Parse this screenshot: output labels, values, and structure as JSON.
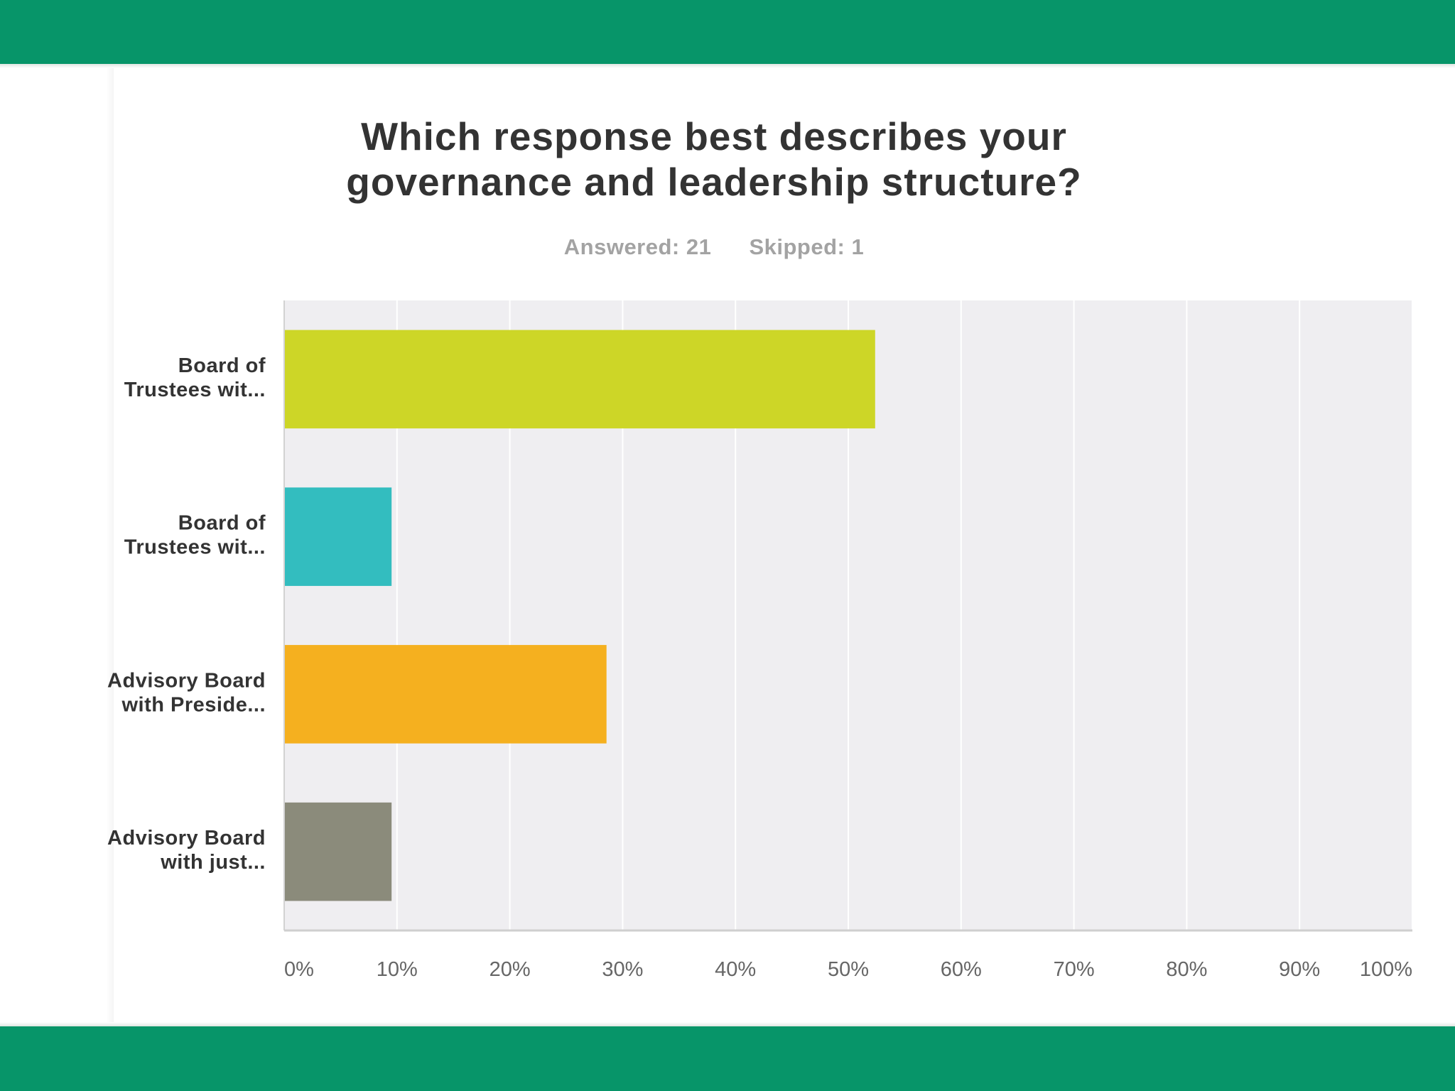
{
  "header": {
    "title_line1": "Which response best describes your",
    "title_line2": "governance and leadership structure?",
    "answered": "Answered: 21",
    "skipped": "Skipped: 1"
  },
  "colors": {
    "frame_green": "#079569",
    "plot_background": "#efeef1",
    "gridline": "#ffffff",
    "axis_label": "#666666",
    "category_label": "#333333"
  },
  "chart_data": {
    "type": "bar",
    "orientation": "horizontal",
    "categories": [
      [
        "Board of",
        "Trustees wit..."
      ],
      [
        "Board of",
        "Trustees wit..."
      ],
      [
        "Advisory Board",
        "with Preside..."
      ],
      [
        "Advisory Board",
        "with just..."
      ]
    ],
    "values": [
      52.38,
      9.52,
      28.57,
      9.52
    ],
    "colors": [
      "#cdd627",
      "#33bdbf",
      "#f5b01f",
      "#8b8b7b"
    ],
    "xlim": [
      0,
      100
    ],
    "tick_labels": [
      "0%",
      "10%",
      "20%",
      "30%",
      "40%",
      "50%",
      "60%",
      "70%",
      "80%",
      "90%",
      "100%"
    ],
    "grid": true,
    "xlabel": "",
    "ylabel": ""
  }
}
